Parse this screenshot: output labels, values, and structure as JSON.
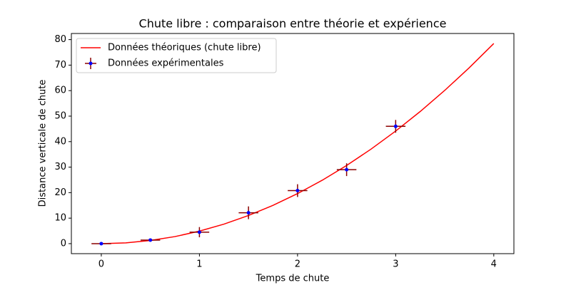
{
  "chart_data": {
    "type": "line_errorbar",
    "title": "Chute libre : comparaison entre théorie et expérience",
    "xlabel": "Temps de chute",
    "ylabel": "Distance verticale de chute",
    "xlim": [
      -0.305,
      4.205
    ],
    "ylim": [
      -3.924,
      82.404
    ],
    "xticks": [
      0,
      1,
      2,
      3,
      4
    ],
    "yticks": [
      0,
      10,
      20,
      30,
      40,
      50,
      60,
      70,
      80
    ],
    "legend": "upper left",
    "grid": false,
    "series": [
      {
        "name": "Données théoriques (chute libre)",
        "kind": "line",
        "color": "#ff0000",
        "x": [
          0,
          0.25,
          0.5,
          0.75,
          1,
          1.25,
          1.5,
          1.75,
          2,
          2.25,
          2.5,
          2.75,
          3,
          3.25,
          3.5,
          3.75,
          4
        ],
        "values": [
          0,
          0.31,
          1.23,
          2.76,
          4.91,
          7.66,
          11.04,
          15.02,
          19.62,
          24.83,
          30.66,
          37.09,
          44.15,
          51.81,
          60.09,
          68.98,
          78.48
        ]
      },
      {
        "name": "Données expérimentales",
        "kind": "errorbar",
        "color": "#0000ff",
        "errcolor": "#8b0000",
        "x": [
          0,
          0.5,
          1,
          1.5,
          2,
          2.5,
          3
        ],
        "values": [
          0,
          1.4,
          4.5,
          12.1,
          20.8,
          29.0,
          46.0
        ],
        "xerr": [
          0.1,
          0.1,
          0.1,
          0.1,
          0.1,
          0.1,
          0.1
        ],
        "yerr": [
          0,
          0.5,
          2.0,
          2.5,
          2.5,
          2.5,
          2.5
        ]
      }
    ]
  }
}
